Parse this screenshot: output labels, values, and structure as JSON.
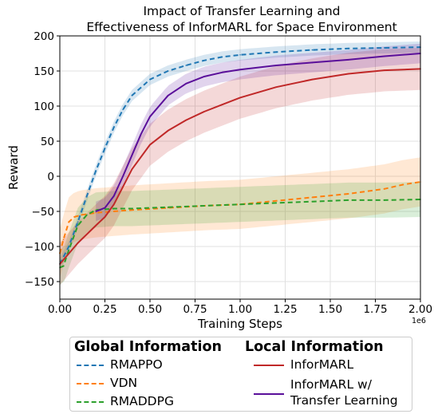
{
  "chart_data": {
    "type": "line",
    "title": [
      "Impact of Transfer Learning and",
      "Effectiveness of InforMARL for Space Environment"
    ],
    "xlabel": "Training Steps",
    "ylabel": "Reward",
    "x_offset_label": "1e6",
    "xlim": [
      0,
      2.0
    ],
    "ylim": [
      -175,
      200
    ],
    "xticks": [
      0.0,
      0.25,
      0.5,
      0.75,
      1.0,
      1.25,
      1.5,
      1.75,
      2.0
    ],
    "xtick_labels": [
      "0.00",
      "0.25",
      "0.50",
      "0.75",
      "1.00",
      "1.25",
      "1.50",
      "1.75",
      "2.00"
    ],
    "yticks": [
      -150,
      -100,
      -50,
      0,
      50,
      100,
      150,
      200
    ],
    "ytick_labels": [
      "−150",
      "−100",
      "−50",
      "0",
      "50",
      "100",
      "150",
      "200"
    ],
    "grid": true,
    "legend_placement": "bottom",
    "series": [
      {
        "name": "RMAPPO",
        "color": "#1f77b4",
        "style": "dashed",
        "band": 8,
        "x": [
          0,
          0.05,
          0.1,
          0.15,
          0.2,
          0.25,
          0.3,
          0.35,
          0.4,
          0.5,
          0.6,
          0.7,
          0.8,
          0.9,
          1.0,
          1.2,
          1.4,
          1.6,
          1.8,
          2.0
        ],
        "values": [
          -125,
          -100,
          -65,
          -28,
          8,
          40,
          70,
          95,
          115,
          138,
          150,
          158,
          165,
          170,
          173,
          177,
          180,
          182,
          183,
          184
        ]
      },
      {
        "name": "VDN",
        "color": "#ff7f0e",
        "style": "dashed",
        "band": 35,
        "x": [
          0,
          0.02,
          0.05,
          0.08,
          0.12,
          0.2,
          0.3,
          0.4,
          0.6,
          0.8,
          1.0,
          1.2,
          1.4,
          1.6,
          1.8,
          1.9,
          2.0
        ],
        "values": [
          -110,
          -90,
          -65,
          -58,
          -55,
          -52,
          -50,
          -48,
          -45,
          -42,
          -40,
          -35,
          -30,
          -25,
          -18,
          -12,
          -8
        ]
      },
      {
        "name": "RMADDPG",
        "color": "#2ca02c",
        "style": "dashed",
        "band": 25,
        "x": [
          0,
          0.02,
          0.05,
          0.1,
          0.15,
          0.2,
          0.3,
          0.4,
          0.6,
          0.8,
          1.0,
          1.2,
          1.4,
          1.6,
          1.8,
          2.0
        ],
        "values": [
          -130,
          -128,
          -105,
          -70,
          -55,
          -48,
          -46,
          -46,
          -44,
          -42,
          -40,
          -38,
          -36,
          -34,
          -34,
          -33
        ]
      },
      {
        "name": "InforMARL",
        "color": "#c02828",
        "style": "solid",
        "band": 30,
        "x": [
          0,
          0.1,
          0.2,
          0.25,
          0.3,
          0.35,
          0.4,
          0.5,
          0.6,
          0.7,
          0.8,
          0.9,
          1.0,
          1.2,
          1.4,
          1.6,
          1.8,
          2.0
        ],
        "values": [
          -125,
          -95,
          -70,
          -58,
          -40,
          -15,
          10,
          45,
          65,
          80,
          92,
          102,
          112,
          127,
          138,
          146,
          151,
          153
        ]
      },
      {
        "name": "InforMARL w/\nTransfer Learning",
        "color": "#5a0f9a",
        "style": "solid",
        "band": 14,
        "x": [
          0.2,
          0.25,
          0.3,
          0.35,
          0.4,
          0.45,
          0.5,
          0.6,
          0.7,
          0.8,
          0.9,
          1.0,
          1.2,
          1.4,
          1.6,
          1.8,
          2.0
        ],
        "values": [
          -50,
          -45,
          -28,
          0,
          30,
          60,
          85,
          115,
          132,
          142,
          148,
          152,
          158,
          162,
          166,
          171,
          175
        ]
      }
    ]
  },
  "legend": {
    "global_heading": "Global Information",
    "local_heading": "Local Information",
    "global_items": [
      "RMAPPO",
      "VDN",
      "RMADDPG"
    ],
    "local_items": [
      "InforMARL",
      "InforMARL w/",
      "Transfer Learning"
    ]
  }
}
